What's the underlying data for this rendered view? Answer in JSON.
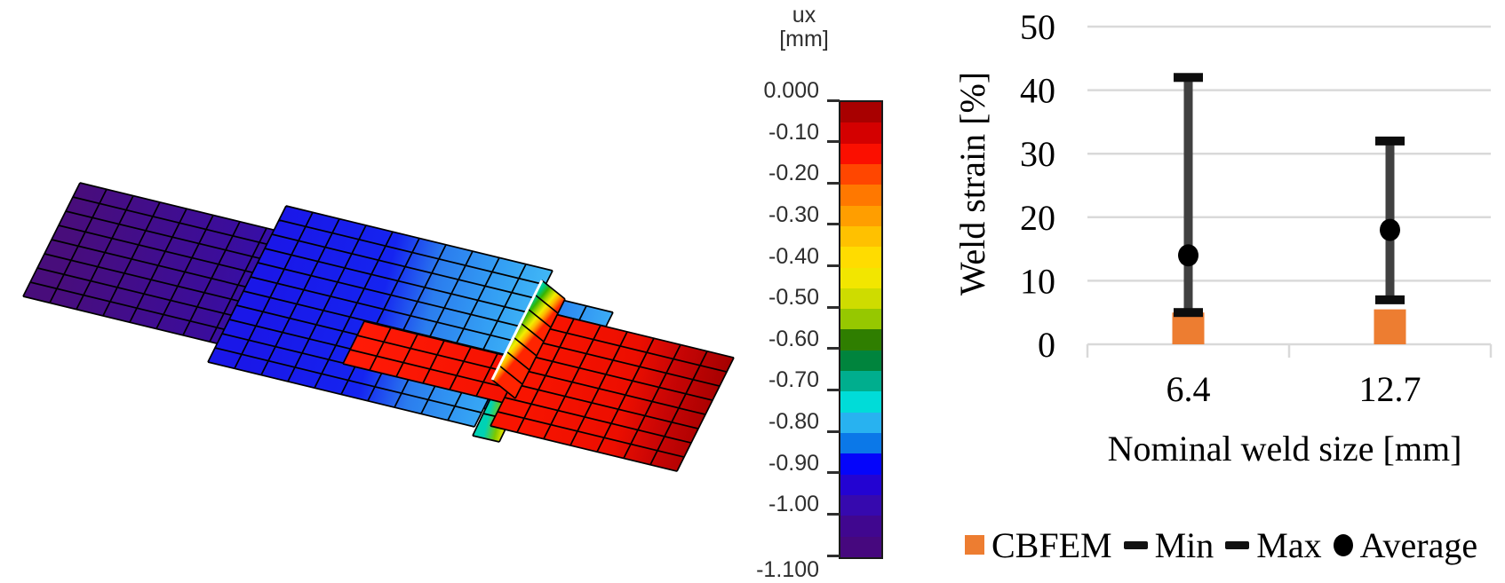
{
  "figure": {
    "model": {
      "name": "CBFEM lap-joint displacement mesh",
      "plates": [
        {
          "name": "left-bottom-plate",
          "stops": [
            [
              0,
              "#480D7B"
            ],
            [
              0.28,
              "#3B0D9A"
            ],
            [
              0.5,
              "#2C11C0"
            ],
            [
              0.68,
              "#1C18E0"
            ],
            [
              0.82,
              "#2256EE"
            ],
            [
              0.92,
              "#2E8DF2"
            ],
            [
              1,
              "#3CADF5"
            ]
          ]
        },
        {
          "name": "middle-top-plate",
          "stops": [
            [
              0,
              "#1A17E8"
            ],
            [
              0.42,
              "#1524F0"
            ],
            [
              0.6,
              "#2B7DEE"
            ],
            [
              0.82,
              "#34A0F4"
            ],
            [
              1,
              "#41B8F6"
            ]
          ]
        },
        {
          "name": "weld-bead-lower",
          "stops": [
            [
              0,
              "#00D2B4"
            ],
            [
              0.4,
              "#7CC800"
            ],
            [
              0.7,
              "#F0E800"
            ],
            [
              1,
              "#FF7800"
            ]
          ]
        },
        {
          "name": "cover-strip",
          "stops": [
            [
              0,
              "#FF1A06"
            ],
            [
              1,
              "#F21000"
            ]
          ]
        },
        {
          "name": "right-bottom-plate",
          "stops": [
            [
              0,
              "#F81400"
            ],
            [
              0.5,
              "#EC0E00"
            ],
            [
              0.72,
              "#C80505"
            ],
            [
              1,
              "#A40000"
            ]
          ]
        },
        {
          "name": "weld-bead-main",
          "stops": [
            [
              0,
              "#00DCC8"
            ],
            [
              0.18,
              "#00C87D"
            ],
            [
              0.34,
              "#38B400"
            ],
            [
              0.5,
              "#A8D400"
            ],
            [
              0.64,
              "#F2EE00"
            ],
            [
              0.78,
              "#FFB400"
            ],
            [
              0.9,
              "#FF6A00"
            ],
            [
              1,
              "#FF2400"
            ]
          ]
        }
      ],
      "mesh_line_color": "#000000"
    },
    "colorbar": {
      "title": "ux",
      "units": "[mm]",
      "tick_labels": [
        "0.000",
        "-0.10",
        "-0.20",
        "-0.30",
        "-0.40",
        "-0.50",
        "-0.60",
        "-0.70",
        "-0.80",
        "-0.90",
        "-1.00",
        "-1.100"
      ],
      "band_colors": [
        "#A80000",
        "#D40000",
        "#FB0F00",
        "#FF4600",
        "#FF7800",
        "#FF9E00",
        "#FFC100",
        "#FFDC00",
        "#F2E600",
        "#CEDC00",
        "#96C800",
        "#2F7E00",
        "#00843D",
        "#00AE8E",
        "#00DCD8",
        "#28B2F0",
        "#0B78E8",
        "#0505FA",
        "#2303D2",
        "#3609AE",
        "#40078F",
        "#46087E"
      ]
    }
  },
  "chart_data": {
    "type": "bar",
    "title": "",
    "categories": [
      "6.4",
      "12.7"
    ],
    "series": [
      {
        "name": "CBFEM",
        "type": "bar",
        "color": "#ED7D31",
        "values": [
          5,
          5.5
        ]
      },
      {
        "name": "Min",
        "type": "error-low",
        "color": "#0D0D0D",
        "values": [
          5,
          7
        ]
      },
      {
        "name": "Max",
        "type": "error-high",
        "color": "#0D0D0D",
        "values": [
          42,
          32
        ]
      },
      {
        "name": "Average",
        "type": "point",
        "color": "#000000",
        "values": [
          14,
          18
        ]
      }
    ],
    "xlabel": "Nominal weld size [mm]",
    "ylabel": "Weld strain [%]",
    "ylim": [
      0,
      50
    ],
    "yticks": [
      0,
      10,
      20,
      30,
      40,
      50
    ],
    "grid": true,
    "gridline_color": "#D9D9D9",
    "errorbar_color": "#404040",
    "legend_position": "bottom"
  },
  "legend": {
    "items": [
      {
        "marker": "square",
        "label": "CBFEM",
        "color": "#ED7D31"
      },
      {
        "marker": "dash",
        "label": "Min",
        "color": "#111111"
      },
      {
        "marker": "dash",
        "label": "Max",
        "color": "#111111"
      },
      {
        "marker": "dot",
        "label": "Average",
        "color": "#000000"
      }
    ]
  }
}
